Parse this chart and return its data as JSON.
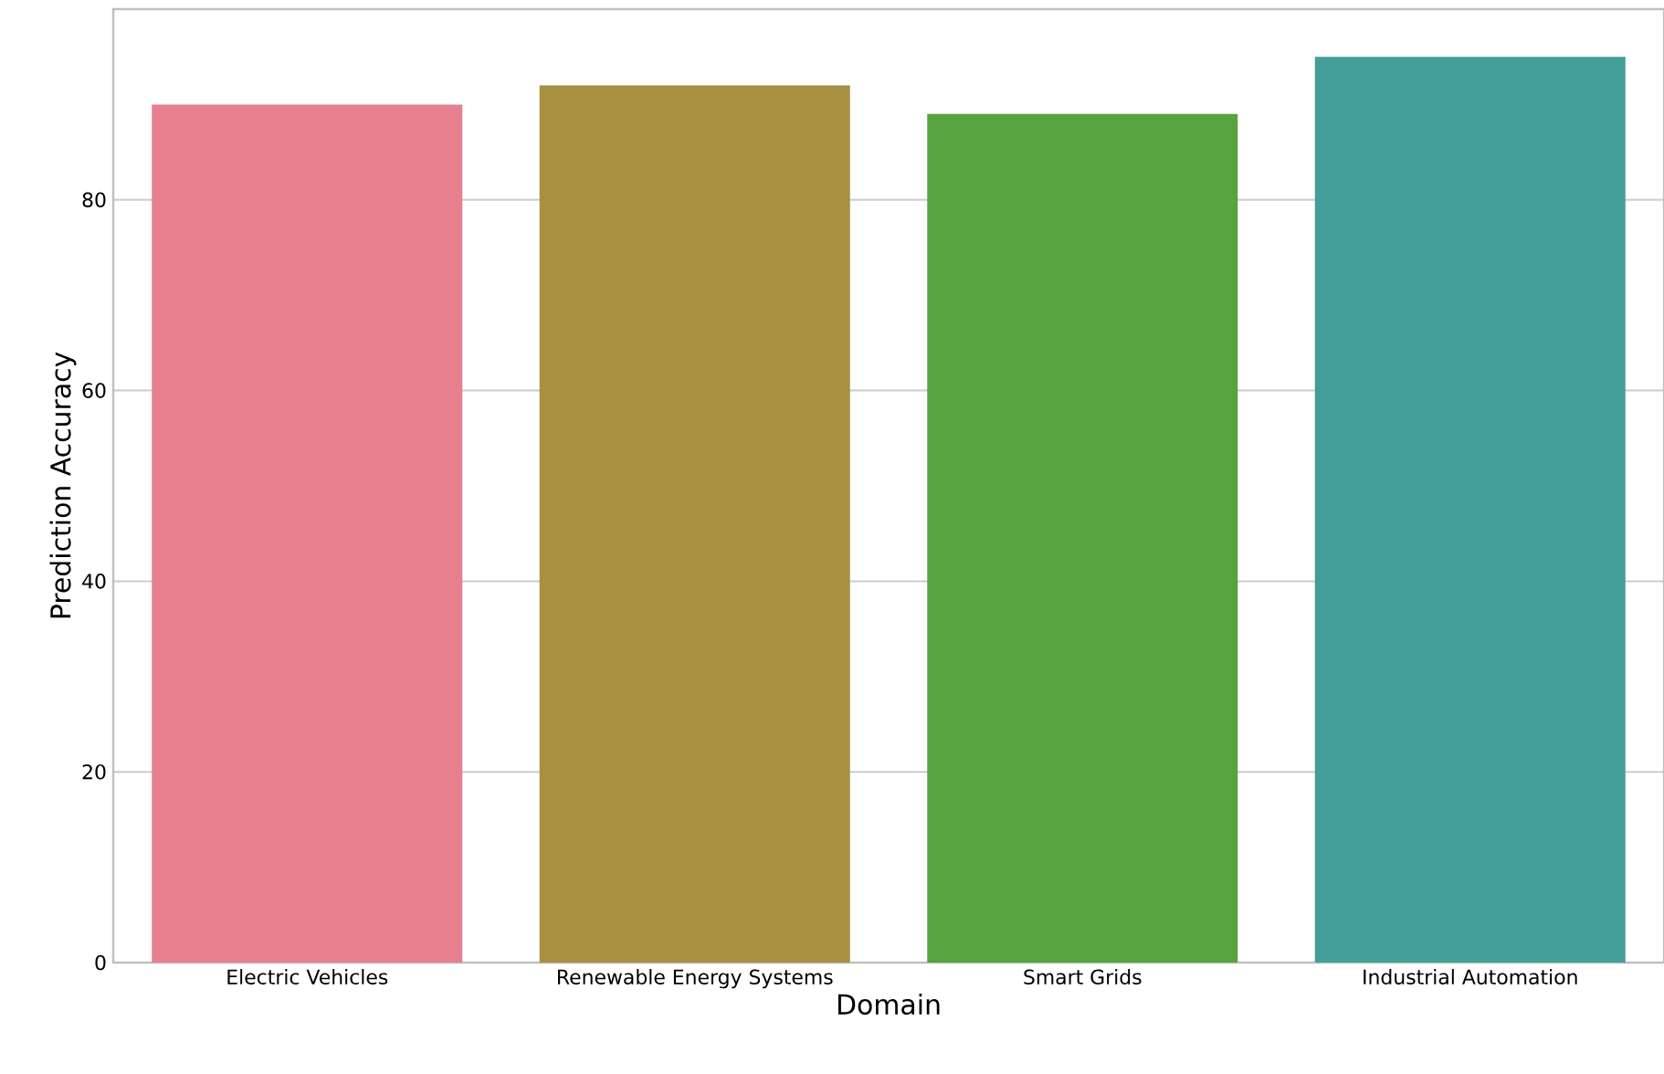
{
  "chart_data": {
    "type": "bar",
    "xlabel": "Domain",
    "ylabel": "Prediction Accuracy",
    "categories": [
      "Electric Vehicles",
      "Renewable Energy Systems",
      "Smart Grids",
      "Industrial Automation"
    ],
    "values": [
      90,
      92,
      89,
      95
    ],
    "colors": [
      "#e6808f",
      "#a88f41",
      "#58a23f",
      "#449e98"
    ],
    "ylim": [
      0,
      100
    ],
    "yticks": [
      0,
      20,
      40,
      60,
      80
    ],
    "grid": "y"
  }
}
